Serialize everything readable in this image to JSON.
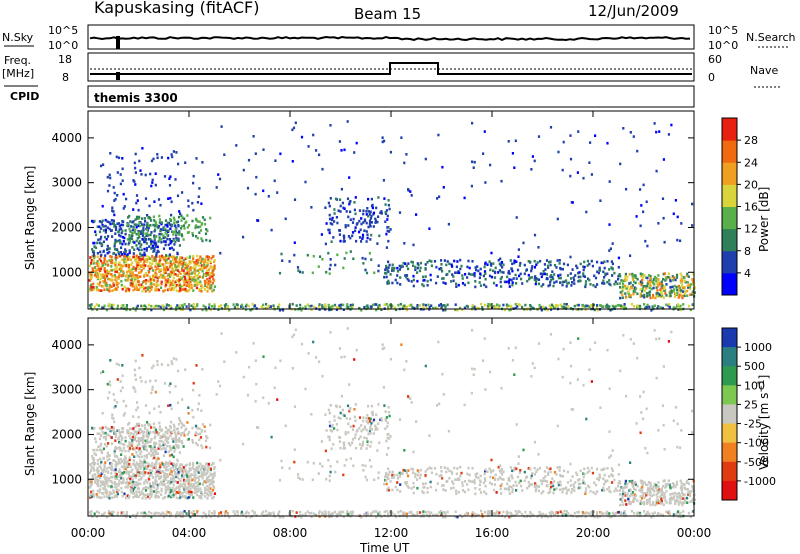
{
  "header": {
    "title": "Kapuskasing (fitACF)",
    "beam": "Beam 15",
    "date": "12/Jun/2009"
  },
  "status_panel": {
    "nsky_label": "N.Sky",
    "nsky_ticks": [
      "10^5",
      "10^0"
    ],
    "nsearch_label": "N.Search",
    "nsearch_ticks": [
      "10^5",
      "10^0"
    ],
    "freq_label": "Freq.",
    "freq_unit": "[MHz]",
    "freq_ticks": [
      "18",
      "8"
    ],
    "nave_label": "Nave",
    "nave_ticks": [
      "60",
      "0"
    ],
    "cpid_label": "CPID",
    "cpid_value": "themis 3300"
  },
  "chart_data": [
    {
      "type": "heatmap",
      "panel": "power",
      "ylabel": "Slant Range [km]",
      "xlabel": "",
      "xlim_hours": [
        0,
        24
      ],
      "ylim": [
        180,
        4600
      ],
      "y_ticks": [
        "1000",
        "2000",
        "3000",
        "4000"
      ],
      "colorbar": {
        "label": "Power [dB]",
        "ticks": [
          "4",
          "8",
          "12",
          "16",
          "20",
          "24",
          "28"
        ],
        "range": [
          0,
          32
        ],
        "colors": [
          "#0000ff",
          "#1f3fae",
          "#2e7f5a",
          "#59b04a",
          "#d8d43a",
          "#f0a020",
          "#f06a10",
          "#e82010"
        ]
      },
      "regions": [
        {
          "t0": 0.0,
          "t1": 5.0,
          "r0": 600,
          "r1": 1400,
          "density": 0.7,
          "v0": 14,
          "v1": 30
        },
        {
          "t0": 0.1,
          "t1": 3.6,
          "r0": 1400,
          "r1": 2200,
          "density": 0.35,
          "v0": 3,
          "v1": 10
        },
        {
          "t0": 1.5,
          "t1": 4.8,
          "r0": 1700,
          "r1": 2300,
          "density": 0.3,
          "v0": 8,
          "v1": 16
        },
        {
          "t0": 0.3,
          "t1": 4.5,
          "r0": 2300,
          "r1": 3800,
          "density": 0.05,
          "v0": 3,
          "v1": 8
        },
        {
          "t0": 7.5,
          "t1": 11.5,
          "r0": 1000,
          "r1": 1500,
          "density": 0.06,
          "v0": 4,
          "v1": 14
        },
        {
          "t0": 9.5,
          "t1": 12.0,
          "r0": 1700,
          "r1": 2700,
          "density": 0.18,
          "v0": 3,
          "v1": 9
        },
        {
          "t0": 11.5,
          "t1": 21.0,
          "r0": 700,
          "r1": 1300,
          "density": 0.28,
          "v0": 3,
          "v1": 11
        },
        {
          "t0": 21.0,
          "t1": 24.0,
          "r0": 450,
          "r1": 1000,
          "density": 0.6,
          "v0": 6,
          "v1": 26
        },
        {
          "t0": 5.0,
          "t1": 24.0,
          "r0": 1300,
          "r1": 4400,
          "density": 0.012,
          "v0": 3,
          "v1": 8
        },
        {
          "t0": 0.0,
          "t1": 24.0,
          "r0": 180,
          "r1": 320,
          "density": 0.55,
          "v0": 5,
          "v1": 20
        }
      ]
    },
    {
      "type": "heatmap",
      "panel": "velocity",
      "ylabel": "Slant Range [km]",
      "xlabel": "Time UT",
      "xlim_hours": [
        0,
        24
      ],
      "ylim": [
        180,
        4600
      ],
      "x_ticks": [
        "00:00",
        "04:00",
        "08:00",
        "12:00",
        "16:00",
        "20:00",
        "00:00"
      ],
      "y_ticks": [
        "1000",
        "2000",
        "3000",
        "4000"
      ],
      "colorbar": {
        "label": "Velocity [m s^-1]",
        "ticks": [
          "1000",
          "500",
          "100",
          "25",
          "-25",
          "-100",
          "-500",
          "-1000"
        ],
        "colors": [
          "#1a3ab0",
          "#2a7f80",
          "#2e9a50",
          "#7cc850",
          "#c8c8c0",
          "#f0c040",
          "#f08020",
          "#e03a10",
          "#e01010"
        ]
      },
      "ground_scatter_color": "#c8c8c0"
    }
  ]
}
